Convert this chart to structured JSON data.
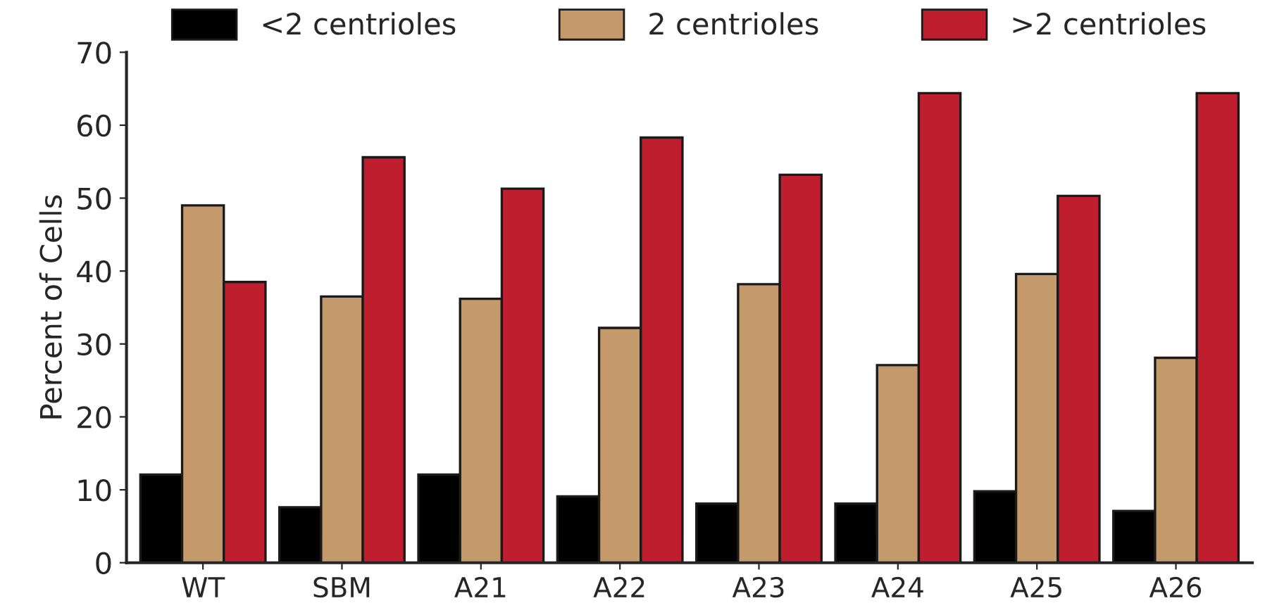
{
  "chart_data": {
    "type": "bar",
    "ylabel": "Percent of Cells",
    "categories": [
      "WT",
      "SBM",
      "A21",
      "A22",
      "A23",
      "A24",
      "A25",
      "A26"
    ],
    "series": [
      {
        "name": "<2 centrioles",
        "color": "#000000",
        "values": [
          12.1,
          7.6,
          12.1,
          9.1,
          8.1,
          8.1,
          9.8,
          7.1
        ]
      },
      {
        "name": "2 centrioles",
        "color": "#c49a6c",
        "values": [
          49.0,
          36.5,
          36.2,
          32.2,
          38.2,
          27.1,
          39.6,
          28.1
        ]
      },
      {
        "name": ">2 centrioles",
        "color": "#be1e2d",
        "values": [
          38.5,
          55.6,
          51.3,
          58.3,
          53.2,
          64.4,
          50.3,
          64.4
        ]
      }
    ],
    "ylim": [
      0,
      70
    ],
    "yticks": [
      0,
      10,
      20,
      30,
      40,
      50,
      60,
      70
    ],
    "grid": false,
    "legend": "top"
  }
}
